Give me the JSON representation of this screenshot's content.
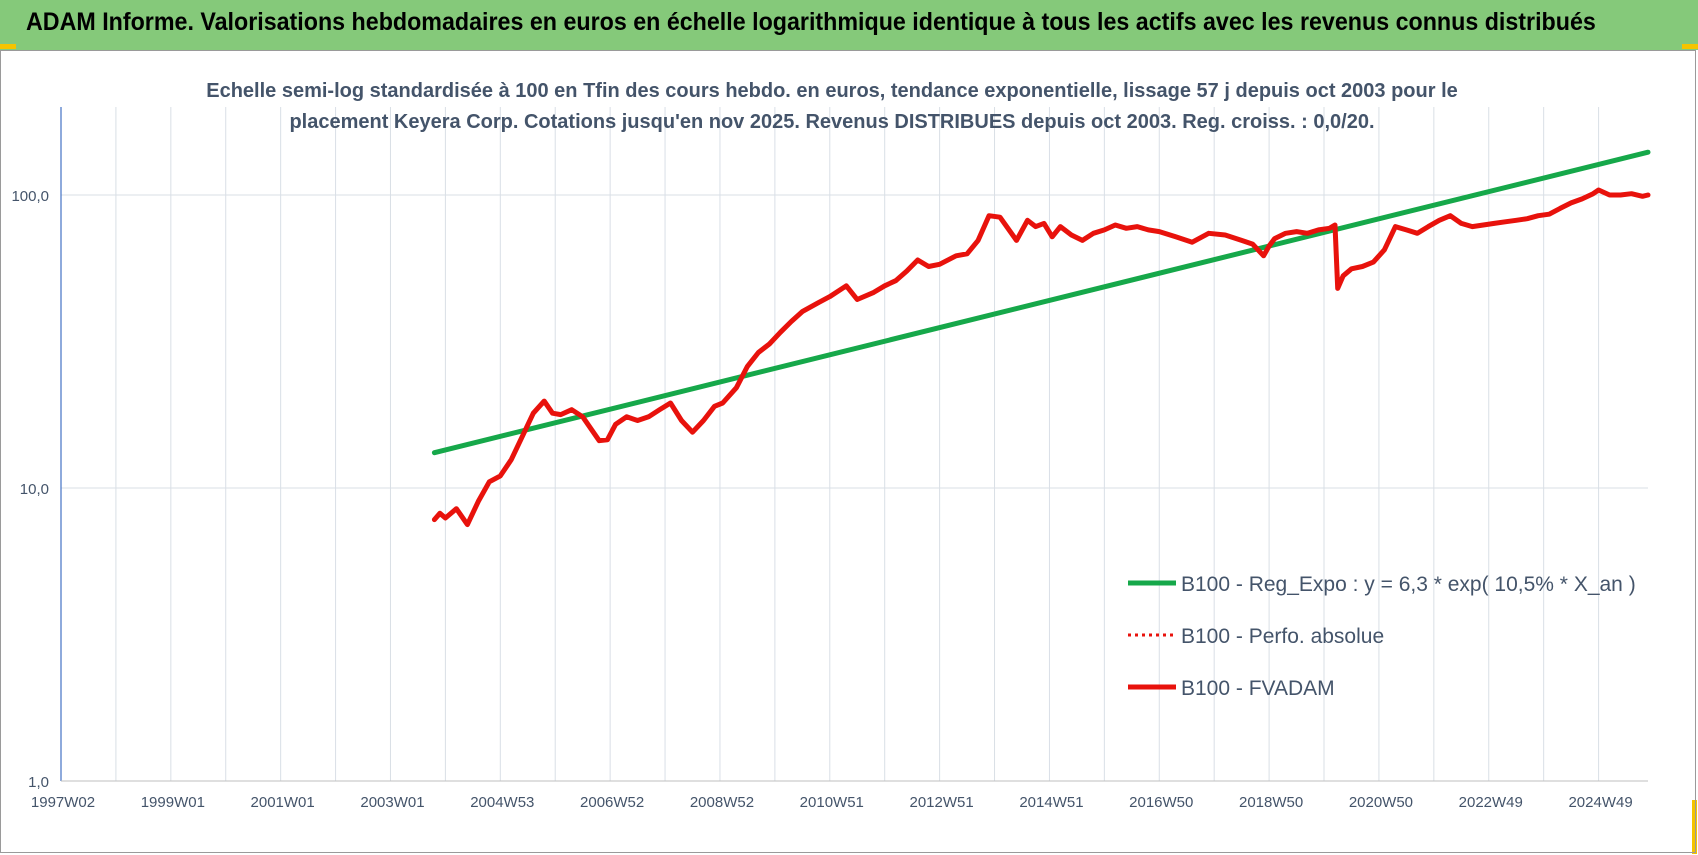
{
  "header": {
    "title": "ADAM Informe. Valorisations hebdomadaires en euros en échelle logarithmique identique à tous les actifs avec les revenus connus distribués"
  },
  "colors": {
    "banner": "#85c97a",
    "accent_corner": "#f5c400",
    "trend": "#16a84a",
    "fvadam": "#e8120c",
    "grid": "#d9dfe6",
    "axis_text": "#44546a"
  },
  "chart_data": {
    "type": "line",
    "title_line1": "Echelle semi-log standardisée à 100 en Tfin des cours hebdo. en euros, tendance exponentielle, lissage 57 j depuis oct 2003 pour le",
    "title_line2": "placement Keyera Corp. Cotations jusqu'en nov 2025. Revenus DISTRIBUES depuis oct 2003. Reg. croiss. : 0,0/20.",
    "y_scale": "log",
    "ylim": [
      1,
      200
    ],
    "y_ticks": [
      {
        "value": 1,
        "label": "1,0"
      },
      {
        "value": 10,
        "label": "10,0"
      },
      {
        "value": 100,
        "label": "100,0"
      }
    ],
    "x_range": [
      1997.0,
      2025.9
    ],
    "x_ticks": [
      {
        "x": 1997.0,
        "label": "1997W02"
      },
      {
        "x": 1999.0,
        "label": "1999W01"
      },
      {
        "x": 2001.0,
        "label": "2001W01"
      },
      {
        "x": 2003.0,
        "label": "2003W01"
      },
      {
        "x": 2005.0,
        "label": "2004W53"
      },
      {
        "x": 2007.0,
        "label": "2006W52"
      },
      {
        "x": 2009.0,
        "label": "2008W52"
      },
      {
        "x": 2011.0,
        "label": "2010W51"
      },
      {
        "x": 2013.0,
        "label": "2012W51"
      },
      {
        "x": 2015.0,
        "label": "2014W51"
      },
      {
        "x": 2017.0,
        "label": "2016W50"
      },
      {
        "x": 2019.0,
        "label": "2018W50"
      },
      {
        "x": 2021.0,
        "label": "2020W50"
      },
      {
        "x": 2023.0,
        "label": "2022W49"
      },
      {
        "x": 2025.0,
        "label": "2024W49"
      }
    ],
    "grid": true,
    "legend_position": "bottom-right",
    "series": [
      {
        "name": "B100 - Reg_Expo : y = 6,3 * exp( 10,5% *  X_an )",
        "color": "#16a84a",
        "style": "solid",
        "x": [
          2003.8,
          2025.9
        ],
        "y": [
          13.2,
          140
        ]
      },
      {
        "name": "B100 - Perfo. absolue",
        "color": "#e8120c",
        "style": "dotted",
        "x": [],
        "y": []
      },
      {
        "name": "B100 - FVADAM",
        "color": "#e8120c",
        "style": "solid",
        "x": [
          2003.8,
          2003.9,
          2004.0,
          2004.2,
          2004.4,
          2004.6,
          2004.8,
          2005.0,
          2005.2,
          2005.4,
          2005.6,
          2005.8,
          2005.95,
          2006.1,
          2006.3,
          2006.5,
          2006.8,
          2006.95,
          2007.1,
          2007.3,
          2007.5,
          2007.7,
          2007.9,
          2008.1,
          2008.3,
          2008.5,
          2008.7,
          2008.9,
          2009.05,
          2009.3,
          2009.5,
          2009.7,
          2009.9,
          2010.1,
          2010.3,
          2010.5,
          2010.8,
          2011.0,
          2011.3,
          2011.5,
          2011.8,
          2012.0,
          2012.2,
          2012.4,
          2012.6,
          2012.8,
          2013.0,
          2013.3,
          2013.5,
          2013.7,
          2013.9,
          2014.1,
          2014.4,
          2014.6,
          2014.75,
          2014.9,
          2015.05,
          2015.2,
          2015.4,
          2015.6,
          2015.8,
          2016.0,
          2016.2,
          2016.4,
          2016.6,
          2016.8,
          2017.0,
          2017.3,
          2017.6,
          2017.9,
          2018.2,
          2018.5,
          2018.7,
          2018.9,
          2019.0,
          2019.1,
          2019.3,
          2019.5,
          2019.7,
          2019.9,
          2020.1,
          2020.2,
          2020.25,
          2020.35,
          2020.5,
          2020.7,
          2020.9,
          2021.1,
          2021.3,
          2021.5,
          2021.7,
          2021.9,
          2022.1,
          2022.3,
          2022.5,
          2022.7,
          2022.9,
          2023.1,
          2023.3,
          2023.5,
          2023.7,
          2023.9,
          2024.1,
          2024.3,
          2024.5,
          2024.7,
          2024.9,
          2025.0,
          2025.2,
          2025.4,
          2025.6,
          2025.8,
          2025.9
        ],
        "y": [
          7.8,
          8.2,
          7.9,
          8.5,
          7.5,
          9.0,
          10.5,
          11.0,
          12.5,
          15.0,
          18.0,
          19.8,
          18.0,
          17.8,
          18.5,
          17.5,
          14.5,
          14.6,
          16.5,
          17.5,
          17.0,
          17.5,
          18.5,
          19.5,
          17.0,
          15.5,
          17.0,
          19.0,
          19.5,
          22.0,
          26.0,
          29.0,
          31.0,
          34.0,
          37.0,
          40.0,
          43.0,
          45.0,
          49.0,
          44.0,
          46.5,
          49.0,
          51.0,
          55.0,
          60.0,
          57.0,
          58.0,
          62.0,
          63.0,
          70.0,
          85.0,
          84.0,
          70.0,
          82.0,
          78.0,
          80.0,
          72.0,
          78.0,
          73.0,
          70.0,
          74.0,
          76.0,
          79.0,
          77.0,
          78.0,
          76.0,
          75.0,
          72.0,
          69.0,
          74.0,
          73.0,
          70.0,
          68.0,
          62.0,
          67.0,
          71.0,
          74.0,
          75.0,
          74.0,
          76.0,
          77.0,
          79.0,
          48.0,
          53.0,
          56.0,
          57.0,
          59.0,
          65.0,
          78.0,
          76.0,
          74.0,
          78.0,
          82.0,
          85.0,
          80.0,
          78.0,
          79.0,
          80.0,
          81.0,
          82.0,
          83.0,
          85.0,
          86.0,
          90.0,
          94.0,
          97.0,
          101.0,
          104.0,
          100.0,
          100.0,
          101.0,
          99.0,
          100.0
        ]
      }
    ]
  }
}
